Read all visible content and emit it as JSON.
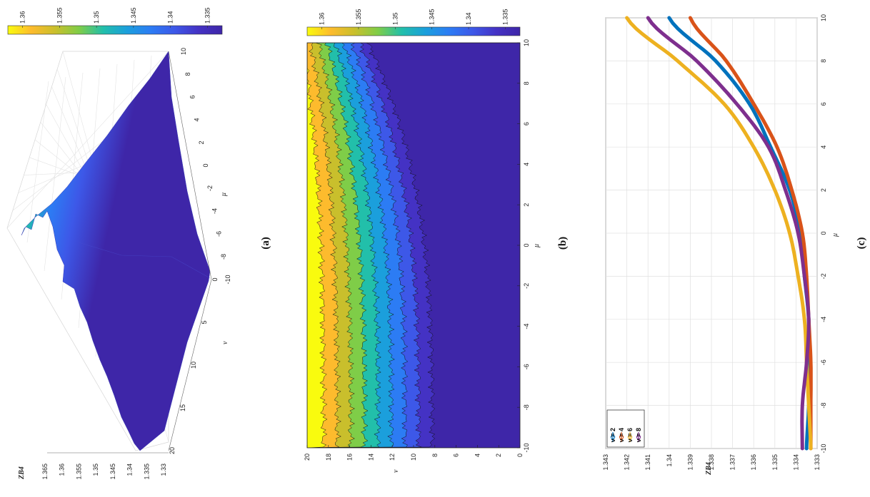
{
  "panels": {
    "a": {
      "label": "(a)"
    },
    "b": {
      "label": "(b)"
    },
    "c": {
      "label": "(c)"
    }
  },
  "colorbar": {
    "ticks": [
      "1.36",
      "1.355",
      "1.35",
      "1.345",
      "1.34",
      "1.335"
    ],
    "range": [
      1.333,
      1.362
    ],
    "colormap": [
      "#f9fb0e",
      "#fdbb2d",
      "#c9bf2c",
      "#7fcd48",
      "#22bfaa",
      "#1b9fdc",
      "#2c7cf4",
      "#3d58e8",
      "#4432c4",
      "#3e26a8"
    ]
  },
  "chart_data": [
    {
      "type": "surface",
      "panel": "a",
      "xlabel": "ν",
      "ylabel": "μ",
      "zlabel": "ZB4",
      "x_ticks": [
        "0",
        "5",
        "10",
        "15",
        "20"
      ],
      "y_ticks": [
        "-10",
        "-8",
        "-6",
        "-4",
        "-2",
        "0",
        "2",
        "4",
        "6",
        "8",
        "10"
      ],
      "z_ticks": [
        "1.33",
        "1.335",
        "1.34",
        "1.345",
        "1.35",
        "1.355",
        "1.36",
        "1.365"
      ],
      "xlim": [
        0,
        20
      ],
      "ylim": [
        -10,
        10
      ],
      "zlim": [
        1.33,
        1.365
      ],
      "grid": true
    },
    {
      "type": "contour",
      "panel": "b",
      "xlabel": "μ",
      "ylabel": "ν",
      "x_ticks": [
        "-10",
        "-8",
        "-6",
        "-4",
        "-2",
        "0",
        "2",
        "4",
        "6",
        "8",
        "10"
      ],
      "y_ticks": [
        "0",
        "2",
        "4",
        "6",
        "8",
        "10",
        "12",
        "14",
        "16",
        "18",
        "20"
      ],
      "xlim": [
        -10,
        10
      ],
      "ylim": [
        0,
        20
      ]
    },
    {
      "type": "line",
      "panel": "c",
      "xlabel": "μ",
      "ylabel": "ZB4",
      "x": [
        -10,
        -8,
        -6,
        -4,
        -2,
        0,
        2,
        4,
        6,
        8,
        10
      ],
      "xlim": [
        -10,
        10
      ],
      "ylim": [
        1.333,
        1.343
      ],
      "x_ticks": [
        "-10",
        "-8",
        "-6",
        "-4",
        "-2",
        "0",
        "2",
        "4",
        "6",
        "8",
        "10"
      ],
      "y_ticks": [
        "1.333",
        "1.334",
        "1.335",
        "1.336",
        "1.337",
        "1.338",
        "1.339",
        "1.34",
        "1.341",
        "1.342",
        "1.343"
      ],
      "grid": true,
      "legend_position": "bottom-left",
      "series": [
        {
          "name": "ν = 2",
          "color": "#0072bd",
          "marker": "o",
          "values": [
            1.3335,
            1.3334,
            1.3334,
            1.3334,
            1.3336,
            1.3338,
            1.3343,
            1.3352,
            1.3362,
            1.3378,
            1.34
          ]
        },
        {
          "name": "ν = 4",
          "color": "#d95319",
          "marker": "s",
          "values": [
            1.3333,
            1.3333,
            1.3333,
            1.3334,
            1.3335,
            1.3337,
            1.3342,
            1.3349,
            1.336,
            1.3373,
            1.339
          ]
        },
        {
          "name": "ν = 6",
          "color": "#edb120",
          "marker": "d",
          "values": [
            1.3333,
            1.3334,
            1.3335,
            1.3336,
            1.3339,
            1.3343,
            1.335,
            1.336,
            1.3374,
            1.3396,
            1.342
          ]
        },
        {
          "name": "ν = 8",
          "color": "#7e2f8e",
          "marker": "v",
          "values": [
            1.3337,
            1.3337,
            1.3335,
            1.3334,
            1.3336,
            1.3339,
            1.3345,
            1.3353,
            1.3368,
            1.3387,
            1.341
          ]
        }
      ]
    }
  ]
}
